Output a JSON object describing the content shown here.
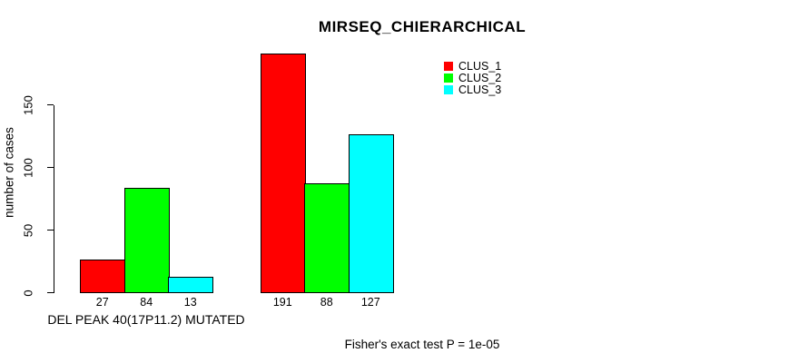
{
  "chart_data": {
    "type": "bar",
    "title": "MIRSEQ_CHIERARCHICAL",
    "ylabel": "number of cases",
    "xlabel": "DEL PEAK 40(17P11.2) MUTATED",
    "annotation": "Fisher's exact test P = 1e-05",
    "categories": [
      "DEL PEAK 40(17P11.2) MUTATED",
      ""
    ],
    "series": [
      {
        "name": "CLUS_1",
        "color": "#ff0000",
        "values": [
          27,
          191
        ]
      },
      {
        "name": "CLUS_2",
        "color": "#00ff00",
        "values": [
          84,
          88
        ]
      },
      {
        "name": "CLUS_3",
        "color": "#00ffff",
        "values": [
          13,
          127
        ]
      }
    ],
    "yticks": [
      0,
      50,
      100,
      150
    ],
    "ylim": [
      0,
      213
    ],
    "grid": false,
    "legend_position": "top-right",
    "bar_border_color": "#000000",
    "axis_color": "#000000",
    "background": "#ffffff"
  }
}
